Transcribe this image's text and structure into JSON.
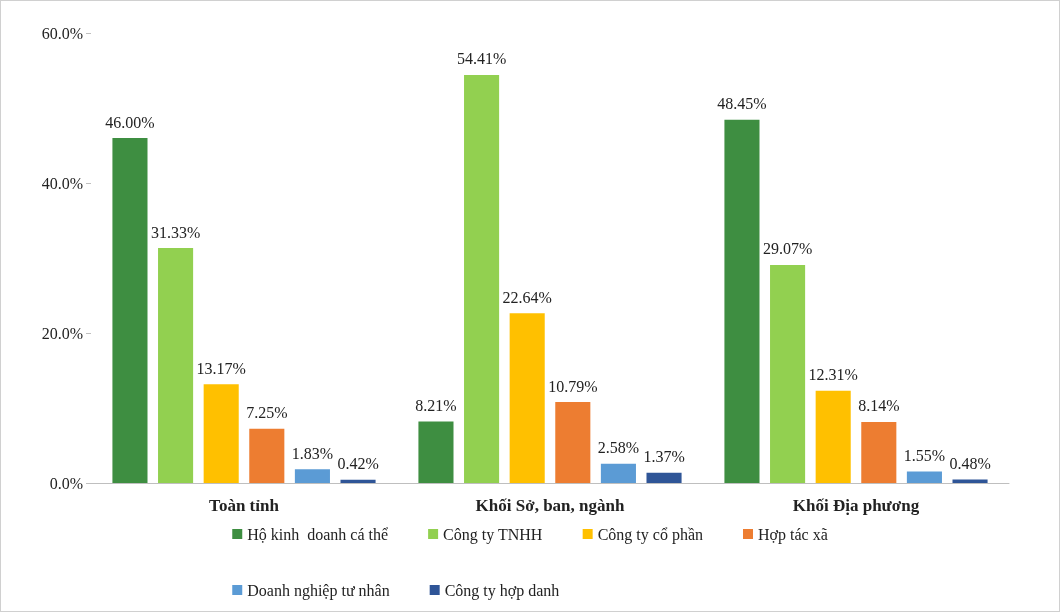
{
  "chart_data": {
    "type": "bar",
    "categories": [
      "Toàn tỉnh",
      "Khối Sở, ban, ngành",
      "Khối Địa phương"
    ],
    "ylim": [
      0,
      60
    ],
    "yticks": [
      {
        "value": 0,
        "label": "0.0%"
      },
      {
        "value": 20,
        "label": "20.0%"
      },
      {
        "value": 40,
        "label": "40.0%"
      },
      {
        "value": 60,
        "label": "60.0%"
      }
    ],
    "grid": false,
    "legend": "bottom",
    "series": [
      {
        "name": "Hộ kinh  doanh cá thể",
        "color": "#3e8e41",
        "values": [
          46.0,
          8.21,
          48.45
        ],
        "value_labels": [
          "46.00%",
          "8.21%",
          "48.45%"
        ]
      },
      {
        "name": "Công ty TNHH",
        "color": "#92d050",
        "values": [
          31.33,
          54.41,
          29.07
        ],
        "value_labels": [
          "31.33%",
          "54.41%",
          "29.07%"
        ]
      },
      {
        "name": "Công ty cổ phần",
        "color": "#ffc000",
        "values": [
          13.17,
          22.64,
          12.31
        ],
        "value_labels": [
          "13.17%",
          "22.64%",
          "12.31%"
        ]
      },
      {
        "name": "Hợp tác xã",
        "color": "#ed7d31",
        "values": [
          7.25,
          10.79,
          8.14
        ],
        "value_labels": [
          "7.25%",
          "10.79%",
          "8.14%"
        ]
      },
      {
        "name": "Doanh nghiệp tư nhân",
        "color": "#5b9bd5",
        "values": [
          1.83,
          2.58,
          1.55
        ],
        "value_labels": [
          "1.83%",
          "2.58%",
          "1.55%"
        ]
      },
      {
        "name": "Công ty hợp danh",
        "color": "#2f5597",
        "values": [
          0.42,
          1.37,
          0.48
        ],
        "value_labels": [
          "0.42%",
          "1.37%",
          "0.48%"
        ]
      }
    ]
  }
}
